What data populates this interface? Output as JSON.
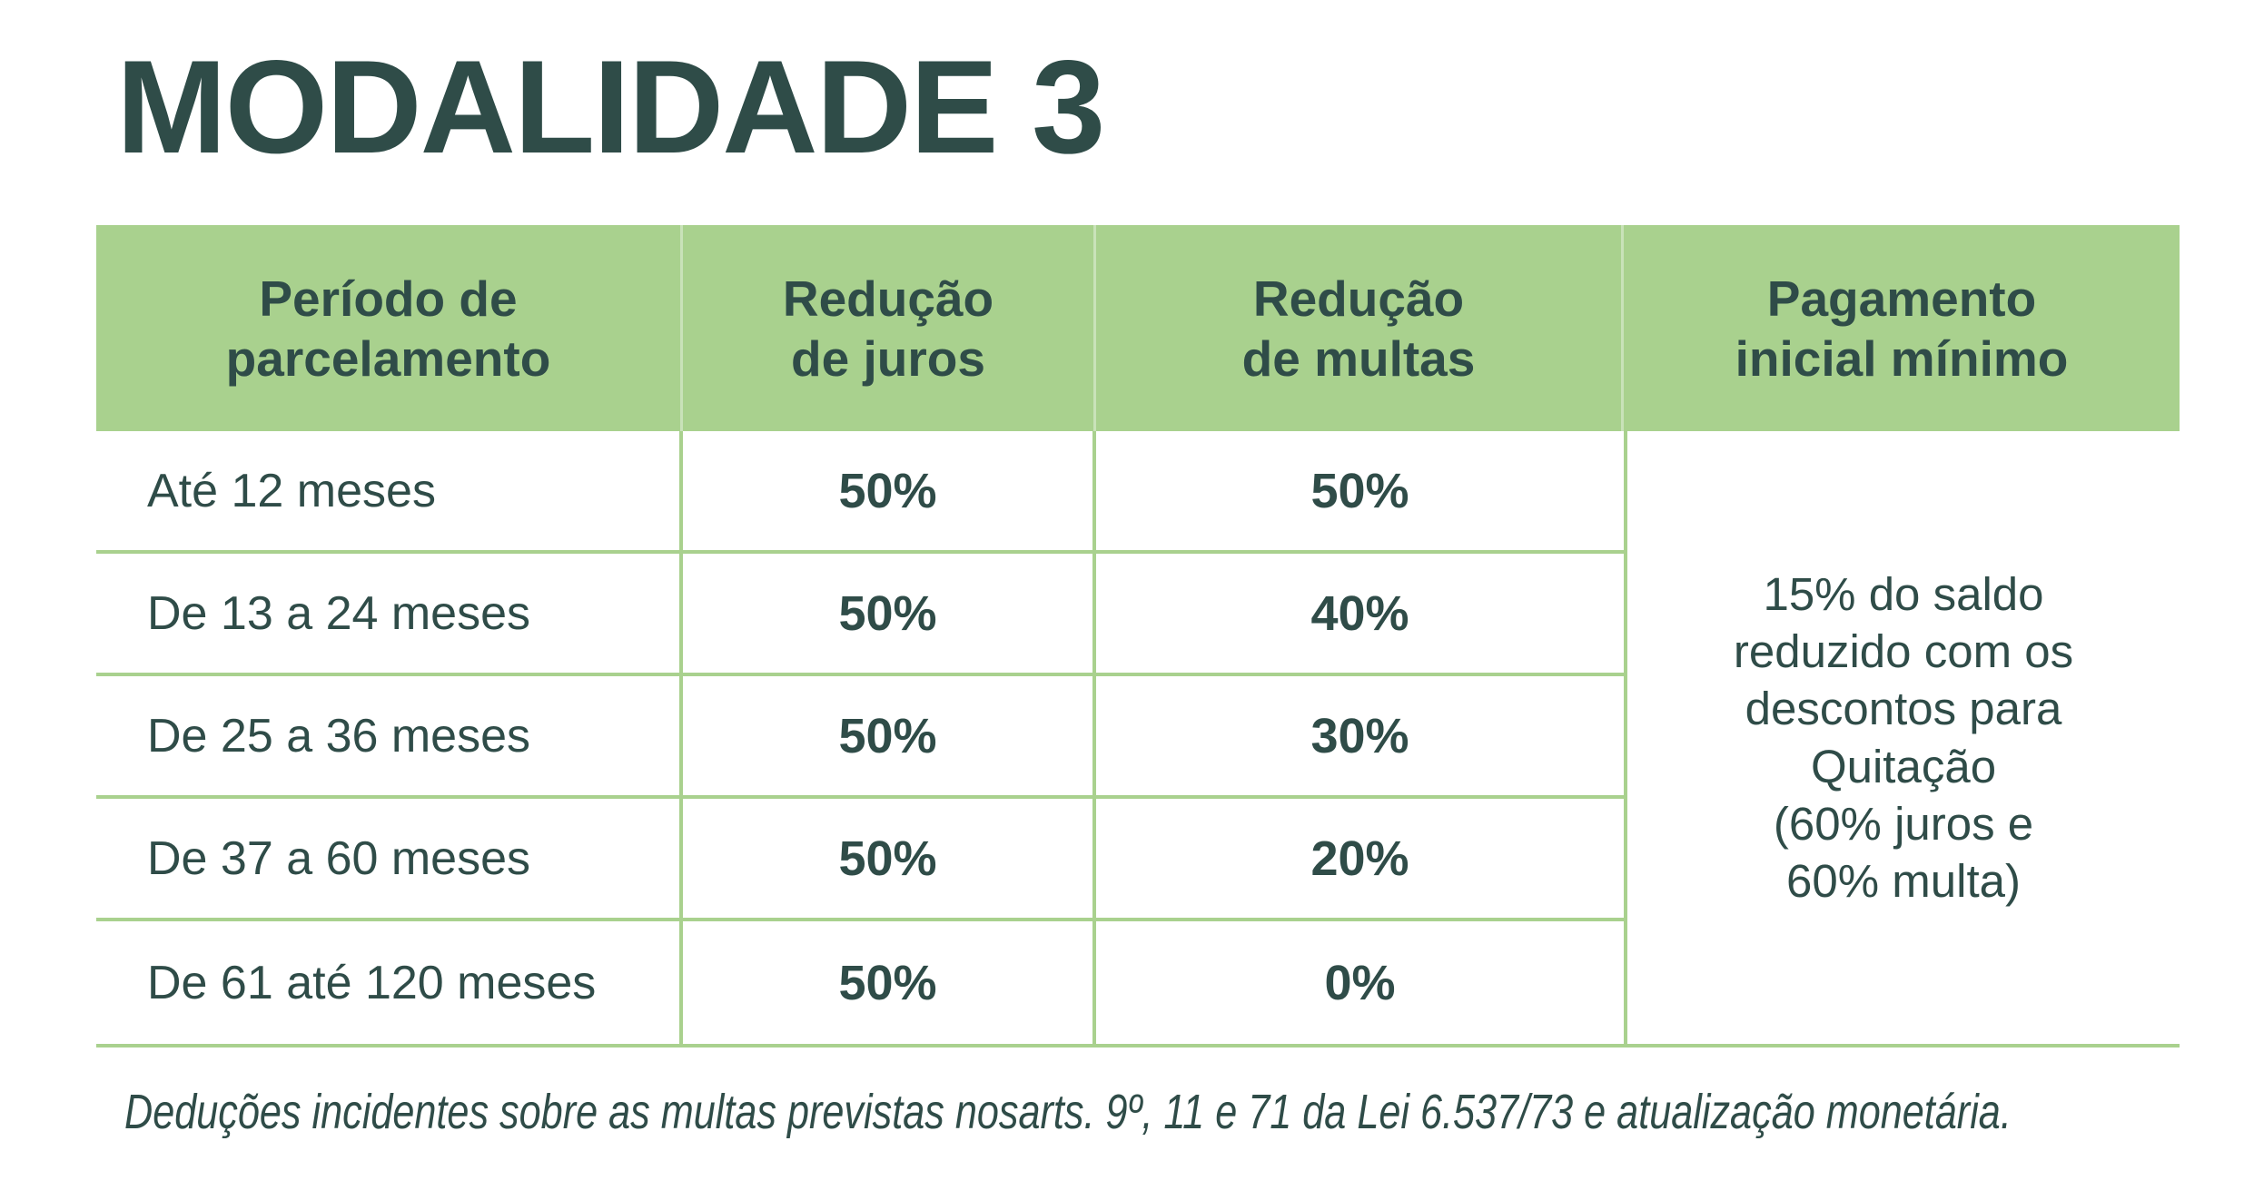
{
  "title": "MODALIDADE 3",
  "colors": {
    "accent_green": "#a9d18e",
    "text_dark": "#2f4c48",
    "header_divider": "rgba(255,255,255,0.38)",
    "page_bg": "#ffffff"
  },
  "table": {
    "columns": [
      {
        "label": "Período de\nparcelamento"
      },
      {
        "label": "Redução\nde juros"
      },
      {
        "label": "Redução\nde multas"
      },
      {
        "label": "Pagamento\ninicial mínimo"
      }
    ],
    "rows": [
      {
        "periodo": "Até 12 meses",
        "reducao_juros": "50%",
        "reducao_multas": "50%"
      },
      {
        "periodo": "De 13 a 24 meses",
        "reducao_juros": "50%",
        "reducao_multas": "40%"
      },
      {
        "periodo": "De 25 a 36 meses",
        "reducao_juros": "50%",
        "reducao_multas": "30%"
      },
      {
        "periodo": "De 37 a 60 meses",
        "reducao_juros": "50%",
        "reducao_multas": "20%"
      },
      {
        "periodo": "De 61 até 120 meses",
        "reducao_juros": "50%",
        "reducao_multas": "0%"
      }
    ],
    "pagamento_inicial_minimo": "15% do saldo\nreduzido com os\ndescontos para\nQuitação\n(60% juros e\n60% multa)"
  },
  "footnote": {
    "part1": "Deduções incidentes sobre as multas previstas nos",
    "part2": "arts. 9º, 11 e 71 da Lei 6.537/73 e atualização monetária."
  }
}
